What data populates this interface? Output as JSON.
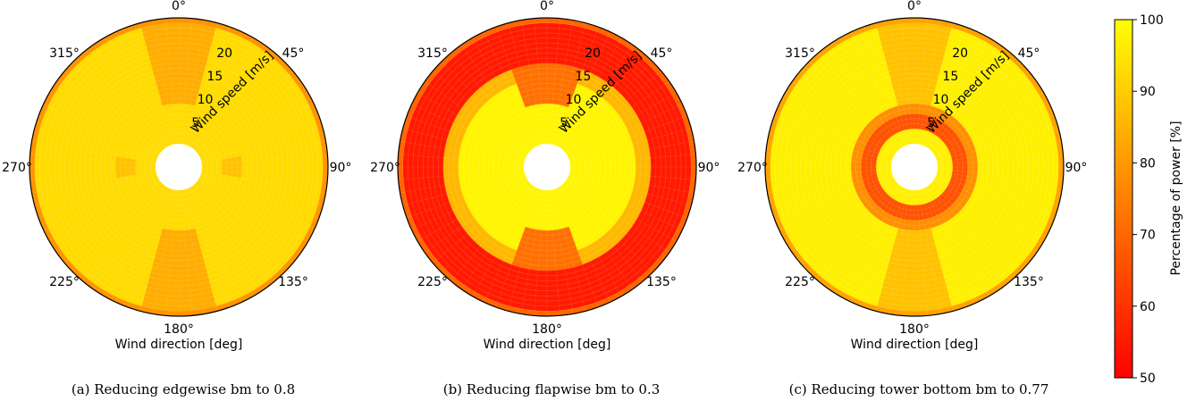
{
  "chart_data": [
    {
      "type": "heatmap",
      "subtype": "polar",
      "caption": "(a) Reducing edgewise bm to 0.8",
      "xlabel": "Wind direction [deg]",
      "rlabel": "Wind speed [m/s]",
      "theta_ticks": [
        "0°",
        "45°",
        "90°",
        "135°",
        "180°",
        "225°",
        "270°",
        "315°"
      ],
      "r_ticks": [
        5,
        10,
        15,
        20
      ],
      "rlim": [
        0,
        25
      ],
      "pattern": {
        "base": 93,
        "outer_ring": {
          "from": 24,
          "to": 25,
          "value": 79
        },
        "axial_lobes": [
          {
            "center_deg": 0,
            "half_width_deg": 14,
            "r_from": 8,
            "r_to": 24,
            "value": 84
          },
          {
            "center_deg": 180,
            "half_width_deg": 14,
            "r_from": 8,
            "r_to": 24,
            "value": 84
          },
          {
            "center_deg": 90,
            "half_width_deg": 12,
            "r_from": 4,
            "r_to": 8,
            "value": 88
          },
          {
            "center_deg": 270,
            "half_width_deg": 12,
            "r_from": 4,
            "r_to": 8,
            "value": 88
          }
        ]
      }
    },
    {
      "type": "heatmap",
      "subtype": "polar",
      "caption": "(b) Reducing flapwise bm to 0.3",
      "xlabel": "Wind direction [deg]",
      "rlabel": "Wind speed [m/s]",
      "theta_ticks": [
        "0°",
        "45°",
        "90°",
        "135°",
        "180°",
        "225°",
        "270°",
        "315°"
      ],
      "r_ticks": [
        5,
        10,
        15,
        20
      ],
      "rlim": [
        0,
        25
      ],
      "pattern": {
        "base": 98,
        "outer_ring": {
          "from": 24,
          "to": 25,
          "value": 70
        },
        "bands": [
          {
            "r_from": 13,
            "r_to": 16,
            "value": 86
          },
          {
            "r_from": 16,
            "r_to": 24,
            "value": 55
          }
        ],
        "axial_lobes": [
          {
            "center_deg": 0,
            "half_width_deg": 18,
            "r_from": 8,
            "r_to": 24,
            "value": 72
          },
          {
            "center_deg": 180,
            "half_width_deg": 18,
            "r_from": 8,
            "r_to": 24,
            "value": 72
          }
        ]
      }
    },
    {
      "type": "heatmap",
      "subtype": "polar",
      "caption": "(c) Reducing tower bottom bm to 0.77",
      "xlabel": "Wind direction [deg]",
      "rlabel": "Wind speed [m/s]",
      "theta_ticks": [
        "0°",
        "45°",
        "90°",
        "135°",
        "180°",
        "225°",
        "270°",
        "315°"
      ],
      "r_ticks": [
        5,
        10,
        15,
        20
      ],
      "rlim": [
        0,
        25
      ],
      "pattern": {
        "base": 97,
        "outer_ring": {
          "from": 24,
          "to": 25,
          "value": 82
        },
        "bands": [
          {
            "r_from": 3,
            "r_to": 6,
            "value": 66
          },
          {
            "r_from": 6,
            "r_to": 8,
            "value": 78
          }
        ],
        "axial_lobes": [
          {
            "center_deg": 0,
            "half_width_deg": 14,
            "r_from": 8,
            "r_to": 24,
            "value": 88
          },
          {
            "center_deg": 180,
            "half_width_deg": 14,
            "r_from": 8,
            "r_to": 24,
            "value": 88
          }
        ]
      }
    }
  ],
  "colorbar": {
    "label": "Percentage of power [%]",
    "min": 50,
    "max": 100,
    "ticks": [
      50,
      60,
      70,
      80,
      90,
      100
    ],
    "colors": [
      "#ff0000",
      "#ffff00"
    ]
  }
}
